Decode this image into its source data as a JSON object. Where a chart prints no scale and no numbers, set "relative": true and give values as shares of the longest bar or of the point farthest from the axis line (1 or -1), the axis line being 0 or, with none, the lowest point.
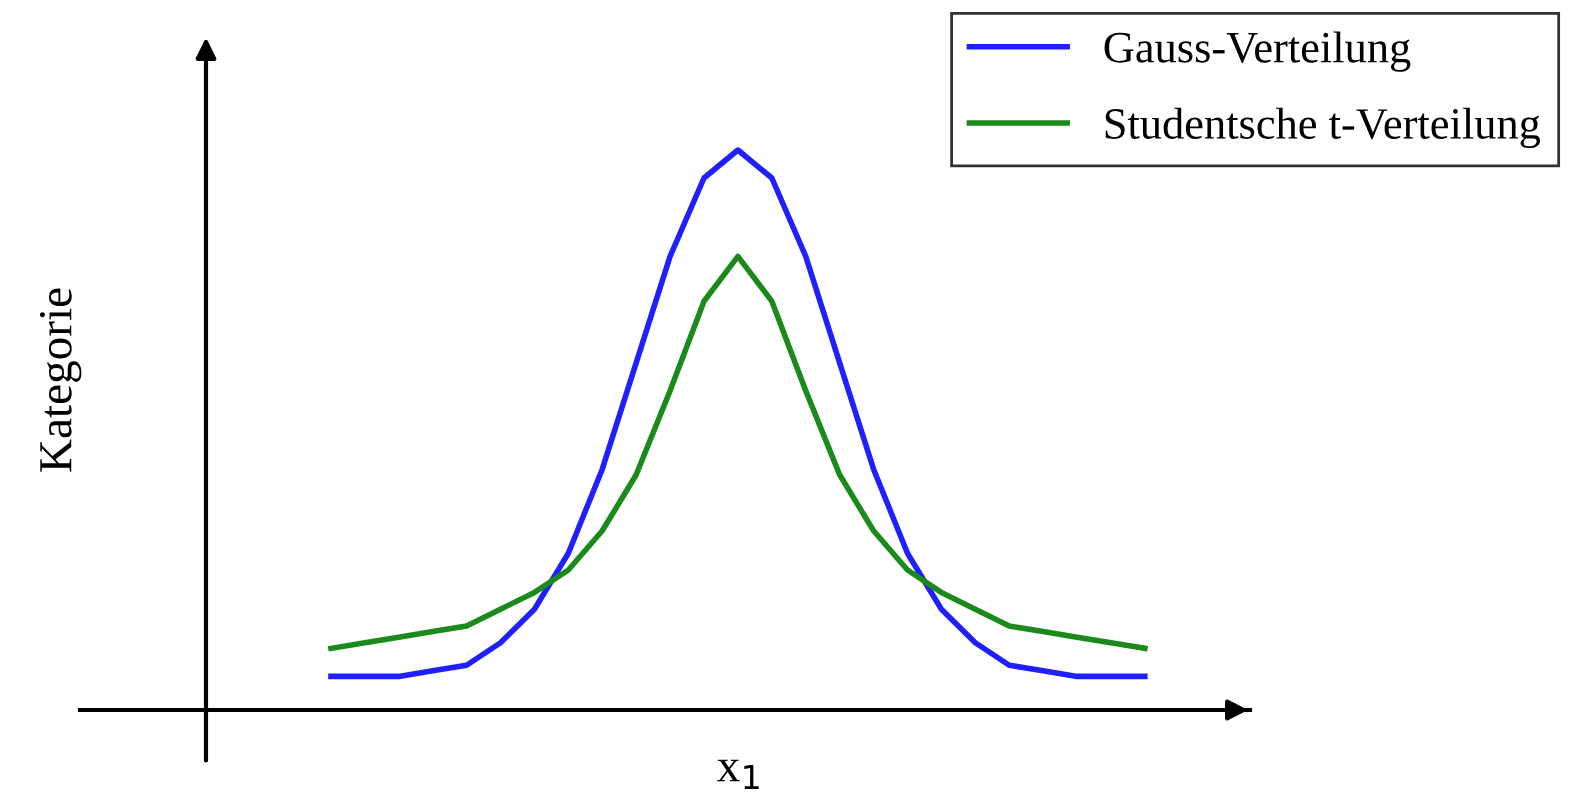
{
  "chart_data": {
    "type": "line",
    "relative": true,
    "ylabel": "Kategorie",
    "xlabel": "x$_{1}$",
    "legend": "top right",
    "marker": "none",
    "line_style": "solid",
    "categories": [
      null,
      null,
      null,
      null,
      null,
      null,
      null,
      null,
      null,
      null,
      null,
      null,
      null,
      null,
      null,
      null,
      null,
      null,
      null,
      null,
      null,
      null,
      null,
      null,
      null
    ],
    "series": [
      {
        "name": "Gauss-Verteilung",
        "color": "#1f1fff",
        "values": [
          0.06,
          0.06,
          0.06,
          0.07,
          0.08,
          0.12,
          0.18,
          0.28,
          0.43,
          0.62,
          0.81,
          0.95,
          1.0,
          0.95,
          0.81,
          0.62,
          0.43,
          0.28,
          0.18,
          0.12,
          0.08,
          0.07,
          0.06,
          0.06,
          0.06
        ]
      },
      {
        "name": "Studentsche t-Verteilung",
        "color": "#1a8a1a",
        "values": [
          0.11,
          0.12,
          0.13,
          0.14,
          0.15,
          0.18,
          0.21,
          0.25,
          0.32,
          0.42,
          0.57,
          0.73,
          0.81,
          0.73,
          0.57,
          0.42,
          0.32,
          0.25,
          0.21,
          0.18,
          0.15,
          0.14,
          0.13,
          0.12,
          0.11
        ]
      }
    ]
  }
}
